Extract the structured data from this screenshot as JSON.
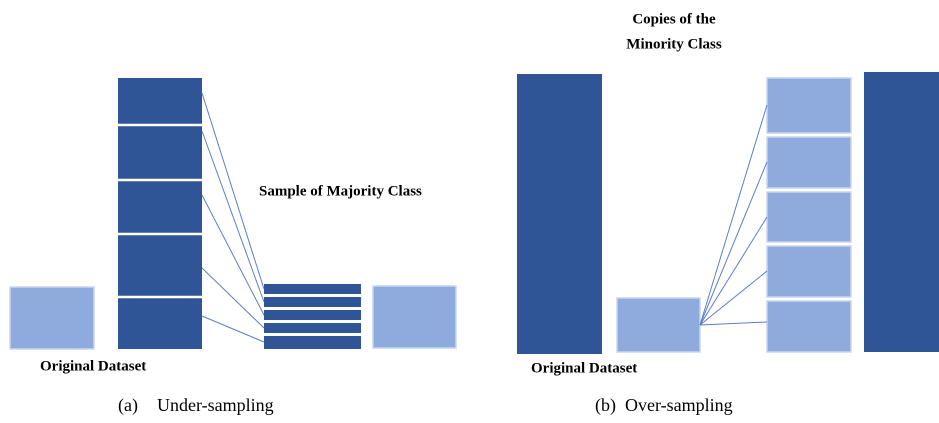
{
  "panels": [
    {
      "caption_tag": "(a)",
      "caption_text": "Under-sampling",
      "original_label": "Original Dataset",
      "sample_label": "Sample of Majority Class"
    },
    {
      "caption_tag": "(b)",
      "caption_text": "Over-sampling",
      "original_label": "Original Dataset",
      "copies_label": [
        "Copies of the",
        "Minority Class"
      ]
    }
  ]
}
